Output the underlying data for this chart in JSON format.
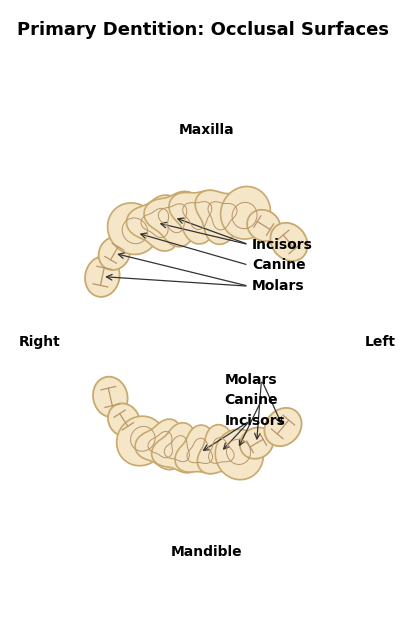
{
  "title": "Primary Dentition: Occlusal Surfaces",
  "panel_bg": "#b8d4e8",
  "outer_background": "#ffffff",
  "tooth_fill": "#f5e6c8",
  "tooth_outline": "#c8a96e",
  "text_color": "#000000",
  "arrow_color": "#333333",
  "labels_upper": [
    "Incisors",
    "Canine",
    "Molars"
  ],
  "labels_lower": [
    "Molars",
    "Canine",
    "Incisors"
  ],
  "label_right": "Right",
  "label_left": "Left",
  "label_maxilla": "Maxilla",
  "label_mandible": "Mandible",
  "title_fontsize": 13,
  "label_fontsize": 10,
  "side_fontsize": 11,
  "detail_color": "#b8956a"
}
